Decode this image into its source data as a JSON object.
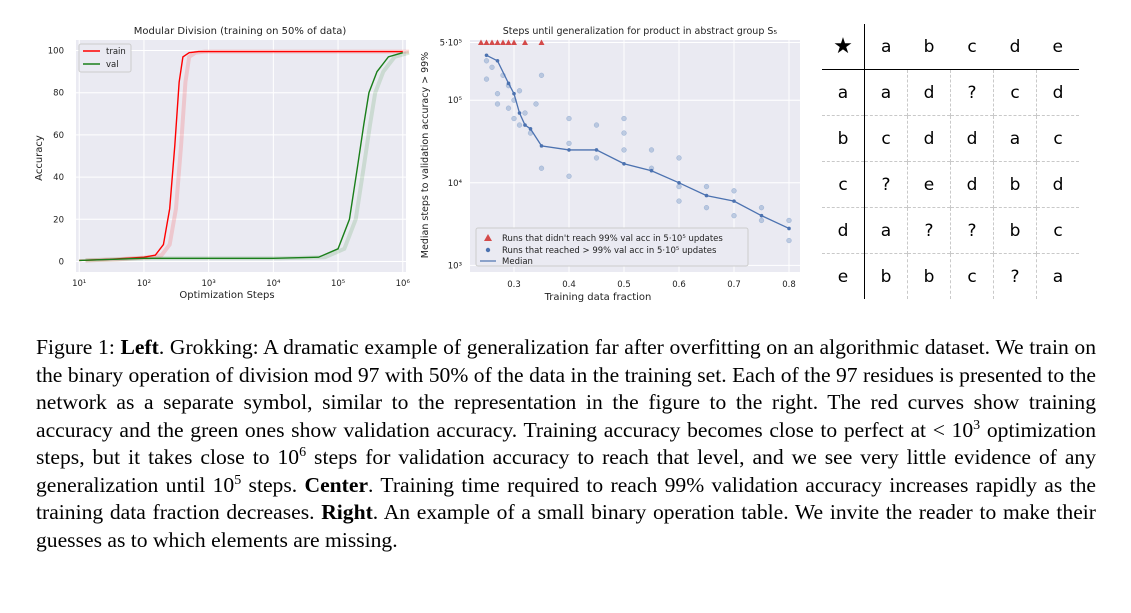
{
  "figure": {
    "left_chart": {
      "title": "Modular Division (training on 50% of data)",
      "xlabel": "Optimization Steps",
      "ylabel": "Accuracy",
      "x_ticks": [
        "10¹",
        "10²",
        "10³",
        "10⁴",
        "10⁵",
        "10⁶"
      ],
      "y_ticks": [
        "0",
        "20",
        "40",
        "60",
        "80",
        "100"
      ],
      "legend": [
        "train",
        "val"
      ]
    },
    "center_chart": {
      "title": "Steps until generalization for product in abstract group S₅",
      "xlabel": "Training data fraction",
      "ylabel": "Median steps to validation accuracy > 99%",
      "x_ticks": [
        "0.3",
        "0.4",
        "0.5",
        "0.6",
        "0.7",
        "0.8"
      ],
      "y_ticks": [
        "10³",
        "10⁴",
        "10⁵",
        "5·10⁵"
      ],
      "legend": [
        "Runs that didn't reach 99% val acc in 5·10⁵ updates",
        "Runs that reached > 99% val acc in 5·10⁵ updates",
        "Median"
      ]
    },
    "op_table": {
      "corner": "★",
      "header": [
        "a",
        "b",
        "c",
        "d",
        "e"
      ],
      "rows": [
        {
          "label": "a",
          "cells": [
            "a",
            "d",
            "?",
            "c",
            "d"
          ]
        },
        {
          "label": "b",
          "cells": [
            "c",
            "d",
            "d",
            "a",
            "c"
          ]
        },
        {
          "label": "c",
          "cells": [
            "?",
            "e",
            "d",
            "b",
            "d"
          ]
        },
        {
          "label": "d",
          "cells": [
            "a",
            "?",
            "?",
            "b",
            "c"
          ]
        },
        {
          "label": "e",
          "cells": [
            "b",
            "b",
            "c",
            "?",
            "a"
          ]
        }
      ]
    }
  },
  "chart_data": [
    {
      "type": "line",
      "title": "Modular Division (training on 50% of data)",
      "xlabel": "Optimization Steps",
      "ylabel": "Accuracy",
      "xscale": "log",
      "xlim": [
        10,
        1000000
      ],
      "ylim": [
        0,
        100
      ],
      "grid": true,
      "legend_position": "top-left",
      "series": [
        {
          "name": "train",
          "color": "#ff0000",
          "x": [
            10,
            30,
            100,
            150,
            200,
            250,
            300,
            350,
            400,
            500,
            700,
            1000,
            10000,
            100000,
            1000000
          ],
          "y": [
            0.5,
            1,
            2,
            3,
            8,
            25,
            55,
            85,
            97,
            99,
            99.5,
            99.5,
            99.5,
            99.5,
            99.5
          ]
        },
        {
          "name": "val",
          "color": "#1a7f1a",
          "x": [
            10,
            100,
            1000,
            10000,
            50000,
            100000,
            150000,
            200000,
            250000,
            300000,
            400000,
            600000,
            1000000
          ],
          "y": [
            0.5,
            1.5,
            1.5,
            1.5,
            2,
            6,
            20,
            45,
            65,
            80,
            90,
            97,
            99
          ]
        }
      ]
    },
    {
      "type": "scatter",
      "title": "Steps until generalization for product in abstract group S₅",
      "xlabel": "Training data fraction",
      "ylabel": "Median steps to validation accuracy > 99%",
      "yscale": "log",
      "xlim": [
        0.22,
        0.82
      ],
      "ylim": [
        1000,
        500000
      ],
      "grid": true,
      "legend_position": "bottom-left",
      "series": [
        {
          "name": "Median",
          "color": "#4c72b0",
          "x": [
            0.25,
            0.27,
            0.29,
            0.3,
            0.31,
            0.32,
            0.33,
            0.35,
            0.4,
            0.45,
            0.5,
            0.55,
            0.6,
            0.65,
            0.7,
            0.75,
            0.8
          ],
          "y": [
            350000,
            300000,
            160000,
            120000,
            70000,
            50000,
            45000,
            28000,
            25000,
            25000,
            17000,
            14000,
            10000,
            7000,
            6000,
            4000,
            2800
          ]
        },
        {
          "name": "Runs that reached > 99% val acc in 5·10⁵ updates",
          "color": "#8fa9cf",
          "x": [
            0.25,
            0.25,
            0.26,
            0.27,
            0.27,
            0.28,
            0.29,
            0.29,
            0.3,
            0.3,
            0.31,
            0.31,
            0.32,
            0.33,
            0.34,
            0.35,
            0.35,
            0.4,
            0.4,
            0.4,
            0.45,
            0.45,
            0.5,
            0.5,
            0.5,
            0.55,
            0.55,
            0.6,
            0.6,
            0.6,
            0.65,
            0.65,
            0.7,
            0.7,
            0.75,
            0.75,
            0.8,
            0.8
          ],
          "y": [
            300000,
            180000,
            250000,
            120000,
            90000,
            200000,
            150000,
            80000,
            100000,
            60000,
            130000,
            50000,
            70000,
            40000,
            90000,
            200000,
            15000,
            60000,
            30000,
            12000,
            50000,
            20000,
            60000,
            40000,
            25000,
            25000,
            15000,
            20000,
            9000,
            6000,
            9000,
            5000,
            8000,
            4000,
            5000,
            3500,
            3500,
            2000
          ]
        },
        {
          "name": "Runs that didn't reach 99% val acc in 5·10⁵ updates",
          "color": "#d44a4a",
          "x": [
            0.24,
            0.25,
            0.26,
            0.27,
            0.28,
            0.29,
            0.3,
            0.32,
            0.35
          ],
          "y": [
            500000,
            500000,
            500000,
            500000,
            500000,
            500000,
            500000,
            500000,
            500000
          ]
        }
      ]
    }
  ],
  "caption": {
    "fig_label": "Figure 1:",
    "left_head": "Left",
    "left_text": ". Grokking: A dramatic example of generalization far after overfitting on an algorithmic dataset. We train on the binary operation of division mod 97 with 50% of the data in the training set. Each of the 97 residues is presented to the network as a separate symbol, similar to the representation in the figure to the right. The red curves show training accuracy and the green ones show validation accuracy. Training accuracy becomes close to perfect at < 10",
    "exp1": "3",
    "mid1": " optimization steps, but it takes close to 10",
    "exp2": "6",
    "mid2": " steps for validation accuracy to reach that level, and we see very little evidence of any generalization until 10",
    "exp3": "5",
    "mid3": " steps. ",
    "center_head": "Center",
    "center_text": ". Training time required to reach 99% validation accuracy increases rapidly as the training data fraction decreases. ",
    "right_head": "Right",
    "right_text": ". An example of a small binary operation table. We invite the reader to make their guesses as to which elements are missing."
  }
}
